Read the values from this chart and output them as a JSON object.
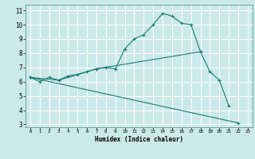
{
  "xlabel": "Humidex (Indice chaleur)",
  "bg_color": "#cce9ea",
  "grid_color": "#ffffff",
  "line_color": "#1a7a6e",
  "xlim": [
    -0.5,
    23.5
  ],
  "ylim": [
    2.8,
    11.4
  ],
  "yticks": [
    3,
    4,
    5,
    6,
    7,
    8,
    9,
    10,
    11
  ],
  "xticks": [
    0,
    1,
    2,
    3,
    4,
    5,
    6,
    7,
    8,
    9,
    10,
    11,
    12,
    13,
    14,
    15,
    16,
    17,
    18,
    19,
    20,
    21,
    22,
    23
  ],
  "line1_x": [
    0,
    1,
    2,
    3,
    4,
    5,
    6,
    7,
    8,
    9,
    10,
    11,
    12,
    13,
    14,
    15,
    16,
    17,
    18,
    19,
    20,
    21
  ],
  "line1_y": [
    6.3,
    6.0,
    6.3,
    6.1,
    6.4,
    6.5,
    6.7,
    6.9,
    7.0,
    6.9,
    8.3,
    9.0,
    9.3,
    10.0,
    10.8,
    10.6,
    10.1,
    10.0,
    8.1,
    6.7,
    6.1,
    4.3
  ],
  "line2_x": [
    0,
    22
  ],
  "line2_y": [
    6.3,
    3.1
  ],
  "line3_x": [
    0,
    3,
    7,
    18
  ],
  "line3_y": [
    6.3,
    6.1,
    6.9,
    8.1
  ]
}
